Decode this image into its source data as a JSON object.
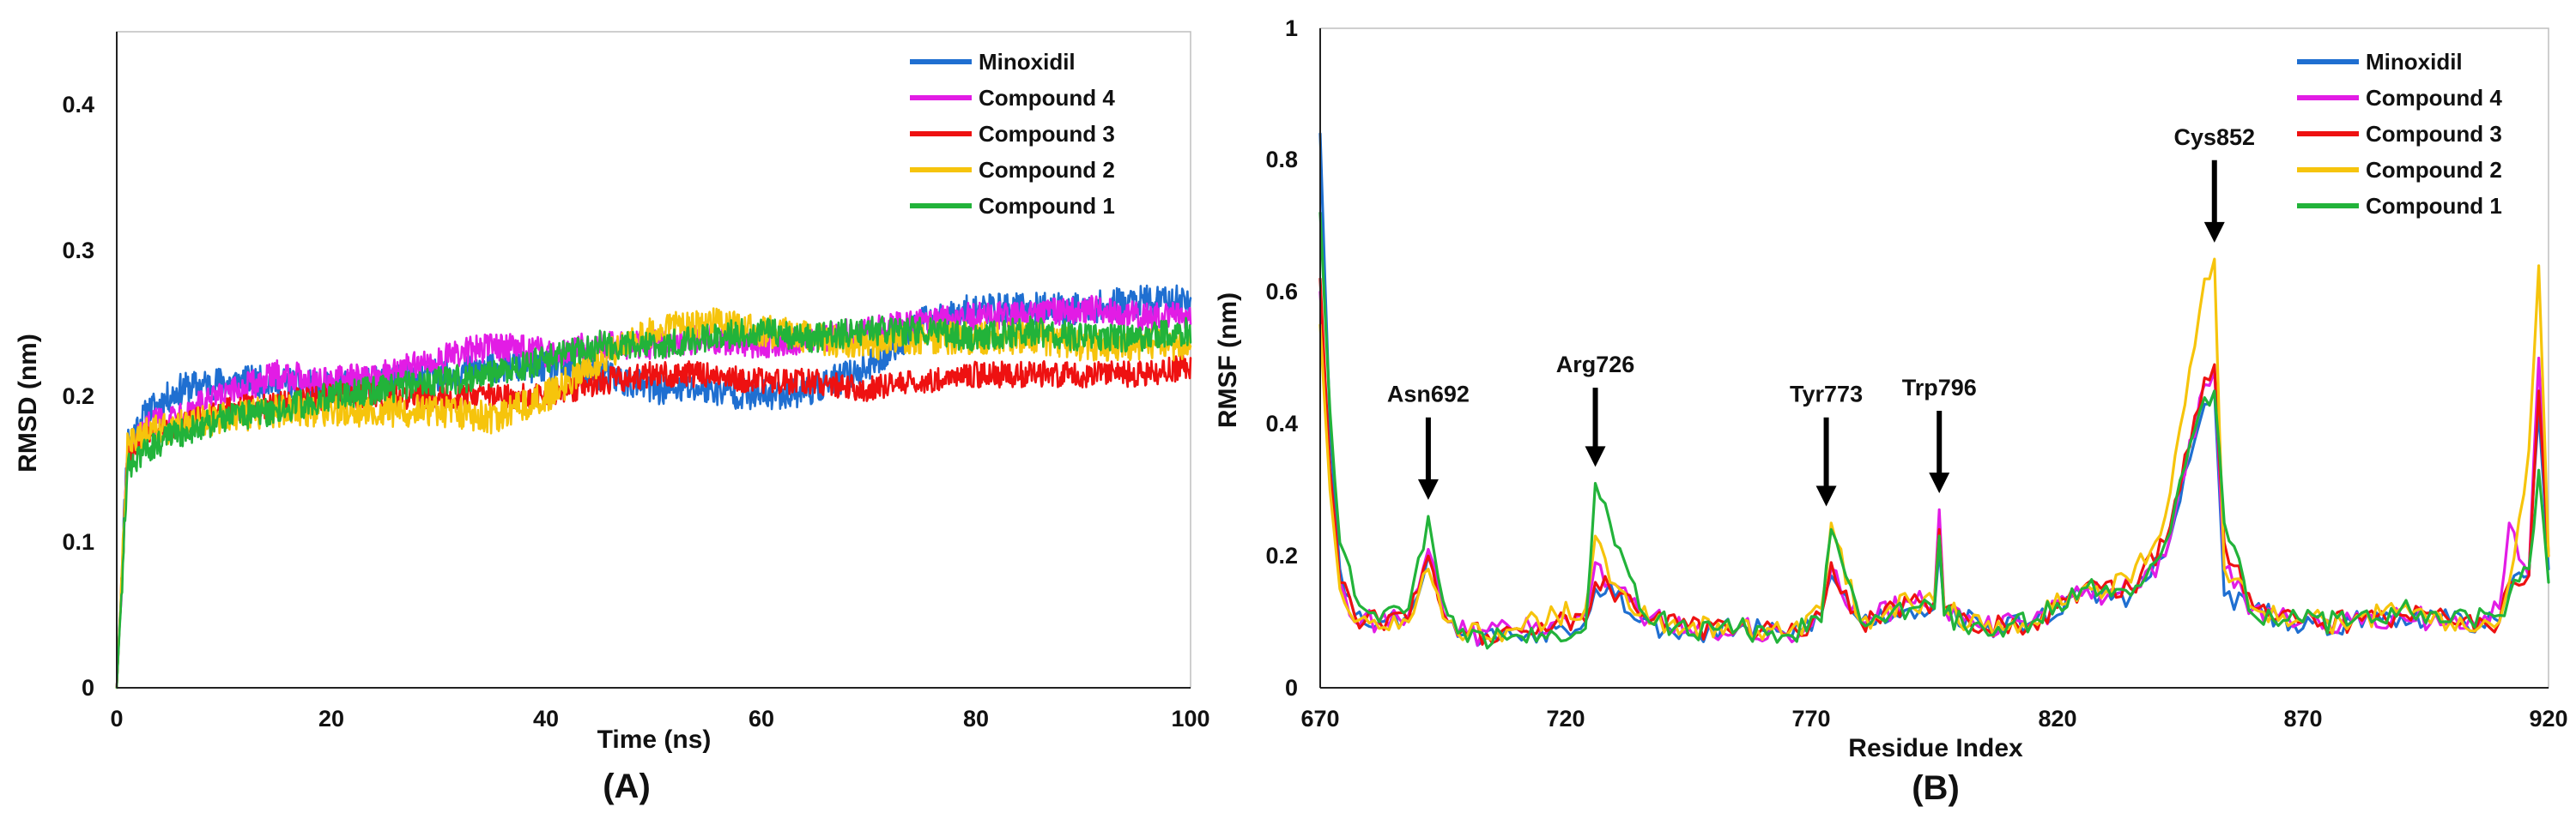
{
  "colors": {
    "Minoxidil": "#1f6fd1",
    "Compound 4": "#e21ce5",
    "Compound 3": "#ee1111",
    "Compound 2": "#f6c40c",
    "Compound 1": "#22b33a"
  },
  "chart_data": [
    {
      "type": "line",
      "panel_label": "(A)",
      "title": "",
      "xlabel": "Time (ns)",
      "ylabel": "RMSD (nm)",
      "xlim": [
        0,
        100
      ],
      "ylim": [
        0,
        0.45
      ],
      "x_ticks": [
        "0",
        "20",
        "40",
        "60",
        "80",
        "100"
      ],
      "y_ticks": [
        "0",
        "0.1",
        "0.2",
        "0.3",
        "0.4"
      ],
      "legend": [
        "Minoxidil",
        "Compound 4",
        "Compound 3",
        "Compound 2",
        "Compound 1"
      ],
      "legend_position": "top-right",
      "series": [
        {
          "name": "Minoxidil",
          "x": [
            0,
            1,
            3,
            6,
            10,
            15,
            20,
            25,
            30,
            35,
            40,
            45,
            50,
            55,
            60,
            65,
            70,
            75,
            80,
            85,
            90,
            95,
            100
          ],
          "values": [
            0.0,
            0.17,
            0.19,
            0.205,
            0.21,
            0.21,
            0.205,
            0.21,
            0.215,
            0.22,
            0.22,
            0.215,
            0.205,
            0.205,
            0.2,
            0.205,
            0.22,
            0.25,
            0.26,
            0.26,
            0.26,
            0.265,
            0.265
          ],
          "noise": 0.011
        },
        {
          "name": "Compound 4",
          "x": [
            0,
            1,
            3,
            6,
            10,
            15,
            20,
            25,
            30,
            35,
            40,
            45,
            50,
            55,
            60,
            65,
            70,
            75,
            80,
            85,
            90,
            95,
            100
          ],
          "values": [
            0.0,
            0.16,
            0.18,
            0.19,
            0.2,
            0.215,
            0.21,
            0.215,
            0.225,
            0.235,
            0.23,
            0.235,
            0.235,
            0.24,
            0.235,
            0.24,
            0.245,
            0.25,
            0.255,
            0.255,
            0.26,
            0.255,
            0.255
          ],
          "noise": 0.01
        },
        {
          "name": "Compound 3",
          "x": [
            0,
            1,
            3,
            6,
            10,
            15,
            20,
            25,
            30,
            35,
            40,
            45,
            50,
            55,
            60,
            65,
            70,
            75,
            80,
            85,
            90,
            95,
            100
          ],
          "values": [
            0.0,
            0.16,
            0.175,
            0.18,
            0.19,
            0.195,
            0.2,
            0.2,
            0.2,
            0.2,
            0.2,
            0.21,
            0.215,
            0.215,
            0.21,
            0.21,
            0.205,
            0.21,
            0.215,
            0.215,
            0.215,
            0.215,
            0.22
          ],
          "noise": 0.009
        },
        {
          "name": "Compound 2",
          "x": [
            0,
            1,
            3,
            6,
            10,
            15,
            20,
            25,
            30,
            35,
            40,
            45,
            50,
            55,
            60,
            65,
            70,
            75,
            80,
            85,
            90,
            95,
            100
          ],
          "values": [
            0.0,
            0.165,
            0.175,
            0.18,
            0.185,
            0.19,
            0.19,
            0.19,
            0.19,
            0.185,
            0.2,
            0.225,
            0.245,
            0.25,
            0.245,
            0.24,
            0.235,
            0.24,
            0.24,
            0.24,
            0.235,
            0.235,
            0.235
          ],
          "noise": 0.011
        },
        {
          "name": "Compound 1",
          "x": [
            0,
            1,
            3,
            6,
            10,
            15,
            20,
            25,
            30,
            35,
            40,
            45,
            50,
            55,
            60,
            65,
            70,
            75,
            80,
            85,
            90,
            95,
            100
          ],
          "values": [
            0.0,
            0.15,
            0.165,
            0.175,
            0.185,
            0.19,
            0.2,
            0.205,
            0.21,
            0.215,
            0.225,
            0.235,
            0.235,
            0.24,
            0.245,
            0.24,
            0.245,
            0.245,
            0.24,
            0.245,
            0.24,
            0.24,
            0.245
          ],
          "noise": 0.01
        }
      ]
    },
    {
      "type": "line",
      "panel_label": "(B)",
      "title": "",
      "xlabel": "Residue Index",
      "ylabel": "RMSF (nm)",
      "xlim": [
        670,
        920
      ],
      "ylim": [
        0,
        1
      ],
      "x_ticks": [
        "670",
        "720",
        "770",
        "820",
        "870",
        "920"
      ],
      "y_ticks": [
        "0",
        "0.2",
        "0.4",
        "0.6",
        "0.8",
        "1"
      ],
      "legend": [
        "Minoxidil",
        "Compound 4",
        "Compound 3",
        "Compound 2",
        "Compound 1"
      ],
      "legend_position": "top-right",
      "series": [
        {
          "name": "Minoxidil",
          "x": [
            670,
            672,
            674,
            677,
            682,
            688,
            692,
            696,
            700,
            710,
            718,
            724,
            726,
            729,
            735,
            745,
            755,
            765,
            772,
            774,
            780,
            790,
            795,
            796,
            797,
            805,
            815,
            825,
            835,
            842,
            850,
            852,
            854,
            860,
            870,
            880,
            890,
            900,
            910,
            912,
            916,
            918,
            920
          ],
          "values": [
            0.84,
            0.4,
            0.18,
            0.11,
            0.1,
            0.11,
            0.2,
            0.1,
            0.08,
            0.08,
            0.09,
            0.1,
            0.15,
            0.16,
            0.1,
            0.08,
            0.09,
            0.08,
            0.11,
            0.17,
            0.1,
            0.12,
            0.12,
            0.21,
            0.12,
            0.09,
            0.1,
            0.14,
            0.14,
            0.2,
            0.43,
            0.45,
            0.14,
            0.12,
            0.09,
            0.1,
            0.11,
            0.1,
            0.1,
            0.15,
            0.17,
            0.42,
            0.18
          ],
          "noise": 0.022
        },
        {
          "name": "Compound 4",
          "x": [
            670,
            672,
            674,
            677,
            682,
            688,
            692,
            696,
            700,
            710,
            718,
            724,
            726,
            729,
            735,
            745,
            755,
            765,
            772,
            774,
            780,
            790,
            795,
            796,
            797,
            805,
            815,
            825,
            835,
            842,
            850,
            852,
            854,
            860,
            870,
            880,
            890,
            900,
            910,
            912,
            916,
            918,
            920
          ],
          "values": [
            0.6,
            0.32,
            0.16,
            0.1,
            0.1,
            0.11,
            0.21,
            0.1,
            0.08,
            0.09,
            0.1,
            0.11,
            0.19,
            0.16,
            0.11,
            0.09,
            0.09,
            0.08,
            0.11,
            0.18,
            0.1,
            0.13,
            0.13,
            0.27,
            0.12,
            0.09,
            0.1,
            0.14,
            0.15,
            0.2,
            0.46,
            0.48,
            0.18,
            0.12,
            0.1,
            0.1,
            0.11,
            0.1,
            0.12,
            0.25,
            0.17,
            0.5,
            0.2
          ],
          "noise": 0.022
        },
        {
          "name": "Compound 3",
          "x": [
            670,
            672,
            674,
            677,
            682,
            688,
            692,
            696,
            700,
            710,
            718,
            724,
            726,
            729,
            735,
            745,
            755,
            765,
            772,
            774,
            780,
            790,
            795,
            796,
            797,
            805,
            815,
            825,
            835,
            842,
            850,
            852,
            854,
            860,
            870,
            880,
            890,
            900,
            910,
            912,
            916,
            918,
            920
          ],
          "values": [
            0.62,
            0.33,
            0.16,
            0.11,
            0.1,
            0.1,
            0.2,
            0.1,
            0.08,
            0.09,
            0.1,
            0.1,
            0.16,
            0.15,
            0.11,
            0.09,
            0.09,
            0.08,
            0.11,
            0.19,
            0.1,
            0.13,
            0.13,
            0.24,
            0.12,
            0.09,
            0.1,
            0.15,
            0.15,
            0.22,
            0.47,
            0.49,
            0.22,
            0.12,
            0.1,
            0.1,
            0.11,
            0.1,
            0.1,
            0.16,
            0.17,
            0.45,
            0.2
          ],
          "noise": 0.022
        },
        {
          "name": "Compound 2",
          "x": [
            670,
            672,
            674,
            677,
            682,
            688,
            692,
            696,
            700,
            710,
            718,
            724,
            726,
            729,
            735,
            745,
            755,
            765,
            772,
            774,
            780,
            790,
            795,
            796,
            797,
            805,
            815,
            825,
            835,
            842,
            850,
            852,
            854,
            860,
            870,
            880,
            890,
            900,
            910,
            912,
            916,
            918,
            920
          ],
          "values": [
            0.55,
            0.3,
            0.15,
            0.1,
            0.09,
            0.1,
            0.18,
            0.1,
            0.08,
            0.09,
            0.11,
            0.12,
            0.23,
            0.16,
            0.11,
            0.09,
            0.09,
            0.08,
            0.12,
            0.25,
            0.1,
            0.13,
            0.13,
            0.23,
            0.12,
            0.09,
            0.1,
            0.15,
            0.16,
            0.26,
            0.62,
            0.65,
            0.18,
            0.12,
            0.1,
            0.1,
            0.12,
            0.1,
            0.1,
            0.16,
            0.36,
            0.64,
            0.2
          ],
          "noise": 0.022
        },
        {
          "name": "Compound 1",
          "x": [
            670,
            672,
            674,
            677,
            682,
            688,
            692,
            696,
            700,
            710,
            718,
            724,
            726,
            729,
            735,
            745,
            755,
            765,
            772,
            774,
            780,
            790,
            795,
            796,
            797,
            805,
            815,
            825,
            835,
            842,
            850,
            852,
            854,
            860,
            870,
            880,
            890,
            900,
            910,
            912,
            916,
            918,
            920
          ],
          "values": [
            0.72,
            0.42,
            0.22,
            0.14,
            0.1,
            0.12,
            0.26,
            0.11,
            0.07,
            0.08,
            0.08,
            0.09,
            0.31,
            0.25,
            0.12,
            0.08,
            0.09,
            0.08,
            0.1,
            0.24,
            0.1,
            0.12,
            0.12,
            0.23,
            0.11,
            0.09,
            0.1,
            0.15,
            0.14,
            0.22,
            0.44,
            0.45,
            0.25,
            0.11,
            0.1,
            0.1,
            0.12,
            0.1,
            0.11,
            0.14,
            0.18,
            0.33,
            0.16
          ],
          "noise": 0.022
        }
      ],
      "annotations": [
        {
          "label": "Asn692",
          "x": 692,
          "arrow_from": 0.41,
          "arrow_to": 0.285
        },
        {
          "label": "Arg726",
          "x": 726,
          "arrow_from": 0.455,
          "arrow_to": 0.335
        },
        {
          "label": "Tyr773",
          "x": 773,
          "arrow_from": 0.41,
          "arrow_to": 0.275
        },
        {
          "label": "Trp796",
          "x": 796,
          "arrow_from": 0.42,
          "arrow_to": 0.295
        },
        {
          "label": "Cys852",
          "x": 852,
          "arrow_from": 0.8,
          "arrow_to": 0.675
        }
      ]
    }
  ]
}
